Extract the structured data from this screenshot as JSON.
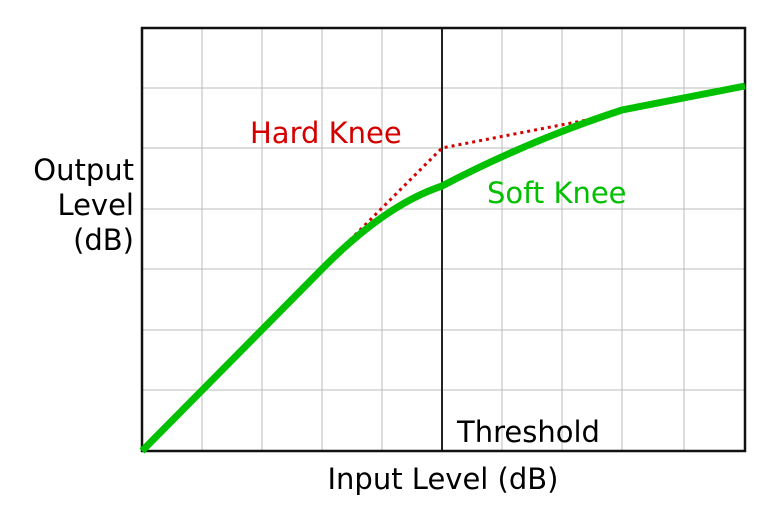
{
  "y_label_lines": [
    "Output",
    "Level",
    "(dB)"
  ],
  "x_label": "Input Level (dB)",
  "threshold_label": "Threshold",
  "hard_knee_label": "Hard Knee",
  "soft_knee_label": "Soft Knee"
}
